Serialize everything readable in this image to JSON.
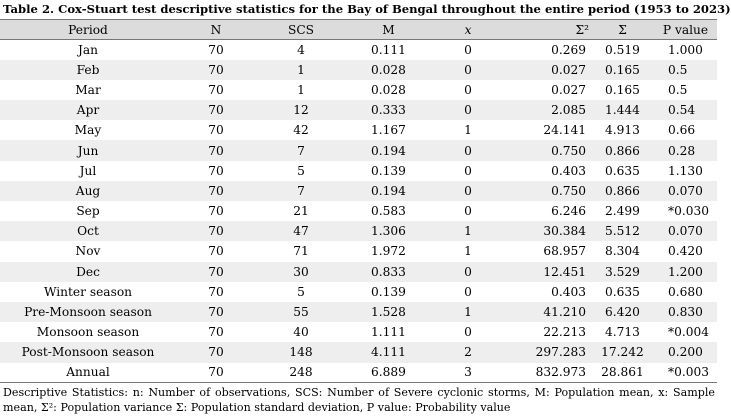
{
  "caption": "Table 2. Cox-Stuart test descriptive statistics for the Bay of Bengal throughout the entire period (1953 to 2023)",
  "headers": [
    "Period",
    "N",
    "SCS",
    "M",
    "x",
    "Σ²",
    "Σ",
    "P value"
  ],
  "rows": [
    [
      "Jan",
      "70",
      "4",
      "0.111",
      "0",
      "0.269",
      "0.519",
      "1.000"
    ],
    [
      "Feb",
      "70",
      "1",
      "0.028",
      "0",
      "0.027",
      "0.165",
      "0.5"
    ],
    [
      "Mar",
      "70",
      "1",
      "0.028",
      "0",
      "0.027",
      "0.165",
      "0.5"
    ],
    [
      "Apr",
      "70",
      "12",
      "0.333",
      "0",
      "2.085",
      "1.444",
      "0.54"
    ],
    [
      "May",
      "70",
      "42",
      "1.167",
      "1",
      "24.141",
      "4.913",
      "0.66"
    ],
    [
      "Jun",
      "70",
      "7",
      "0.194",
      "0",
      "0.750",
      "0.866",
      "0.28"
    ],
    [
      "Jul",
      "70",
      "5",
      "0.139",
      "0",
      "0.403",
      "0.635",
      "1.130"
    ],
    [
      "Aug",
      "70",
      "7",
      "0.194",
      "0",
      "0.750",
      "0.866",
      "0.070"
    ],
    [
      "Sep",
      "70",
      "21",
      "0.583",
      "0",
      "6.246",
      "2.499",
      "*0.030"
    ],
    [
      "Oct",
      "70",
      "47",
      "1.306",
      "1",
      "30.384",
      "5.512",
      "0.070"
    ],
    [
      "Nov",
      "70",
      "71",
      "1.972",
      "1",
      "68.957",
      "8.304",
      "0.420"
    ],
    [
      "Dec",
      "70",
      "30",
      "0.833",
      "0",
      "12.451",
      "3.529",
      "1.200"
    ],
    [
      "Winter season",
      "70",
      "5",
      "0.139",
      "0",
      "0.403",
      "0.635",
      "0.680"
    ],
    [
      "Pre-Monsoon season",
      "70",
      "55",
      "1.528",
      "1",
      "41.210",
      "6.420",
      "0.830"
    ],
    [
      "Monsoon season",
      "70",
      "40",
      "1.111",
      "0",
      "22.213",
      "4.713",
      "*0.004"
    ],
    [
      "Post-Monsoon season",
      "70",
      "148",
      "4.111",
      "2",
      "297.283",
      "17.242",
      "0.200"
    ],
    [
      "Annual",
      "70",
      "248",
      "6.889",
      "3",
      "832.973",
      "28.861",
      "*0.003"
    ]
  ],
  "footnote": "Descriptive Statistics: n: Number of observations, SCS: Number of Severe cyclonic storms, M: Population mean, x: Sample mean, Σ²: Population variance Σ: Population standard deviation, P value: Probability value"
}
